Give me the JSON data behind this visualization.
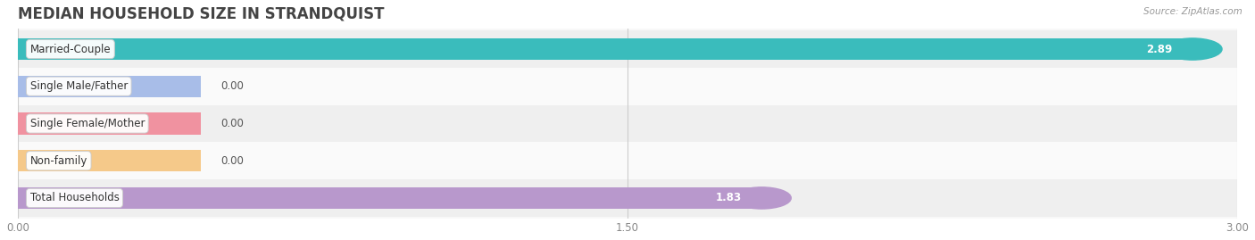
{
  "title": "MEDIAN HOUSEHOLD SIZE IN STRANDQUIST",
  "source": "Source: ZipAtlas.com",
  "categories": [
    "Married-Couple",
    "Single Male/Father",
    "Single Female/Mother",
    "Non-family",
    "Total Households"
  ],
  "values": [
    2.89,
    0.0,
    0.0,
    0.0,
    1.83
  ],
  "bar_colors": [
    "#3abcbc",
    "#a8bde8",
    "#f092a0",
    "#f5c98a",
    "#b898cc"
  ],
  "xlim": [
    0,
    3.0
  ],
  "xticks": [
    0.0,
    1.5,
    3.0
  ],
  "xticklabels": [
    "0.00",
    "1.50",
    "3.00"
  ],
  "bar_height": 0.58,
  "row_bg_even": "#efefef",
  "row_bg_odd": "#fafafa",
  "label_fontsize": 8.5,
  "value_fontsize": 8.5,
  "title_fontsize": 12,
  "zero_bar_width": 0.45
}
